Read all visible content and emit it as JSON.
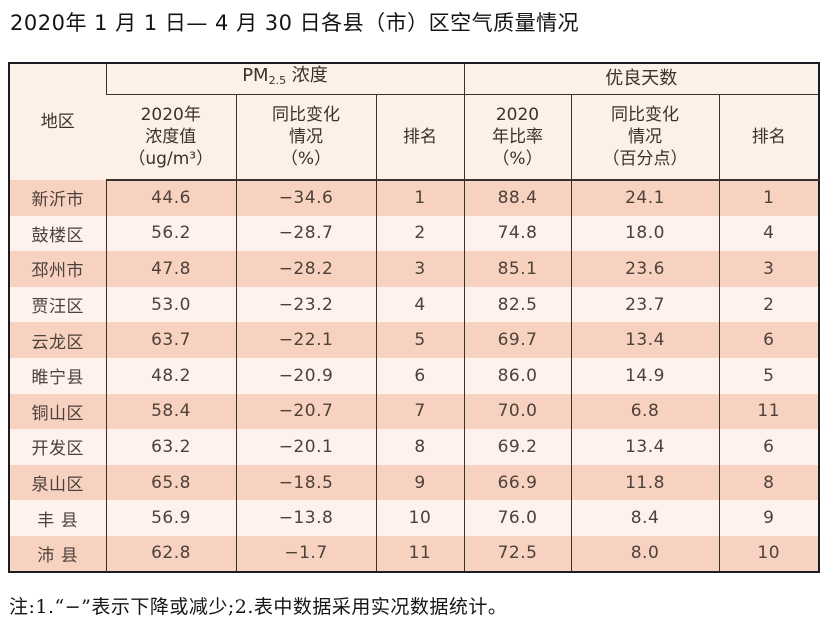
{
  "title": "2020年 1 月 1 日— 4 月 30 日各县（市）区空气质量情况",
  "footnote": "注:1.“−”表示下降或减少;2.表中数据采用实况数据统计。",
  "table": {
    "header": {
      "region": "地区",
      "pm25_group_prefix": "PM",
      "pm25_group_sub": "2.5",
      "pm25_group_rest": " 浓度",
      "good_days_group": "优良天数",
      "pm_value": "2020年\n浓度值\n（ug/m³）",
      "pm_change": "同比变化\n情况\n（%）",
      "pm_rank": "排名",
      "good_ratio": "2020\n年比率\n（%）",
      "good_change": "同比变化\n情况\n（百分点）",
      "good_rank": "排名"
    },
    "rows": [
      {
        "region": "新沂市",
        "pm_value": "44.6",
        "pm_change": "−34.6",
        "pm_rank": "1",
        "good_ratio": "88.4",
        "good_change": "24.1",
        "good_rank": "1"
      },
      {
        "region": "鼓楼区",
        "pm_value": "56.2",
        "pm_change": "−28.7",
        "pm_rank": "2",
        "good_ratio": "74.8",
        "good_change": "18.0",
        "good_rank": "4"
      },
      {
        "region": "邳州市",
        "pm_value": "47.8",
        "pm_change": "−28.2",
        "pm_rank": "3",
        "good_ratio": "85.1",
        "good_change": "23.6",
        "good_rank": "3"
      },
      {
        "region": "贾汪区",
        "pm_value": "53.0",
        "pm_change": "−23.2",
        "pm_rank": "4",
        "good_ratio": "82.5",
        "good_change": "23.7",
        "good_rank": "2"
      },
      {
        "region": "云龙区",
        "pm_value": "63.7",
        "pm_change": "−22.1",
        "pm_rank": "5",
        "good_ratio": "69.7",
        "good_change": "13.4",
        "good_rank": "6"
      },
      {
        "region": "睢宁县",
        "pm_value": "48.2",
        "pm_change": "−20.9",
        "pm_rank": "6",
        "good_ratio": "86.0",
        "good_change": "14.9",
        "good_rank": "5"
      },
      {
        "region": "铜山区",
        "pm_value": "58.4",
        "pm_change": "−20.7",
        "pm_rank": "7",
        "good_ratio": "70.0",
        "good_change": "6.8",
        "good_rank": "11"
      },
      {
        "region": "开发区",
        "pm_value": "63.2",
        "pm_change": "−20.1",
        "pm_rank": "8",
        "good_ratio": "69.2",
        "good_change": "13.4",
        "good_rank": "6"
      },
      {
        "region": "泉山区",
        "pm_value": "65.8",
        "pm_change": "−18.5",
        "pm_rank": "9",
        "good_ratio": "66.9",
        "good_change": "11.8",
        "good_rank": "8"
      },
      {
        "region": "丰 县",
        "pm_value": "56.9",
        "pm_change": "−13.8",
        "pm_rank": "10",
        "good_ratio": "76.0",
        "good_change": "8.4",
        "good_rank": "9"
      },
      {
        "region": "沛 县",
        "pm_value": "62.8",
        "pm_change": "−1.7",
        "pm_rank": "11",
        "good_ratio": "72.5",
        "good_change": "8.0",
        "good_rank": "10"
      }
    ],
    "colors": {
      "row_salmon": "#f8d2c0",
      "row_light": "#fdf2ec",
      "header_bg": "#fcf0e7",
      "border_dark": "#1c1c24"
    }
  }
}
